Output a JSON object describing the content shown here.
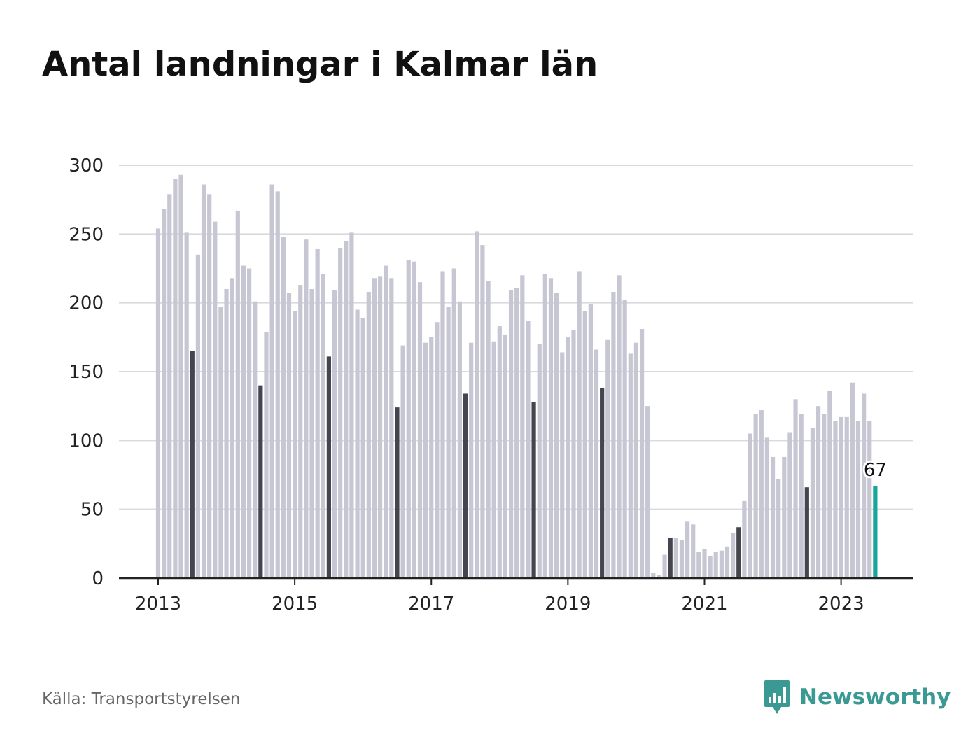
{
  "chart_data": {
    "type": "bar",
    "title": "Antal landningar i Kalmar län",
    "xlabel": "",
    "ylabel": "",
    "ylim": [
      0,
      300
    ],
    "yticks": [
      "0",
      "50",
      "100",
      "150",
      "200",
      "250",
      "300"
    ],
    "xticks": [
      "2013",
      "2015",
      "2017",
      "2019",
      "2021",
      "2023"
    ],
    "grid": true,
    "colors": {
      "default": "#c7c6d3",
      "july": "#45444f",
      "latest": "#16a69a",
      "grid": "#d9d9df",
      "axis": "#222222"
    },
    "x_start": "2013-01",
    "x_end": "2023-07",
    "values": [
      254,
      268,
      279,
      290,
      293,
      251,
      165,
      235,
      286,
      279,
      259,
      197,
      210,
      218,
      267,
      227,
      225,
      201,
      140,
      179,
      286,
      281,
      248,
      207,
      194,
      213,
      246,
      210,
      239,
      221,
      161,
      209,
      240,
      245,
      251,
      195,
      189,
      208,
      218,
      219,
      227,
      218,
      124,
      169,
      231,
      230,
      215,
      171,
      175,
      186,
      223,
      197,
      225,
      201,
      134,
      171,
      252,
      242,
      216,
      172,
      183,
      177,
      209,
      211,
      220,
      187,
      128,
      170,
      221,
      218,
      207,
      164,
      175,
      180,
      223,
      194,
      199,
      166,
      138,
      173,
      208,
      220,
      202,
      163,
      171,
      181,
      125,
      4,
      2,
      17,
      29,
      29,
      28,
      41,
      39,
      19,
      21,
      16,
      19,
      20,
      23,
      33,
      37,
      56,
      105,
      119,
      122,
      102,
      88,
      72,
      88,
      106,
      130,
      119,
      66,
      109,
      125,
      119,
      136,
      114,
      117,
      117,
      142,
      114,
      134,
      114,
      67
    ],
    "latest_label": "67"
  },
  "footer": {
    "source": "Källa: Transportstyrelsen",
    "brand": "Newsworthy",
    "brand_icon": "newsworthy-logo-icon"
  }
}
